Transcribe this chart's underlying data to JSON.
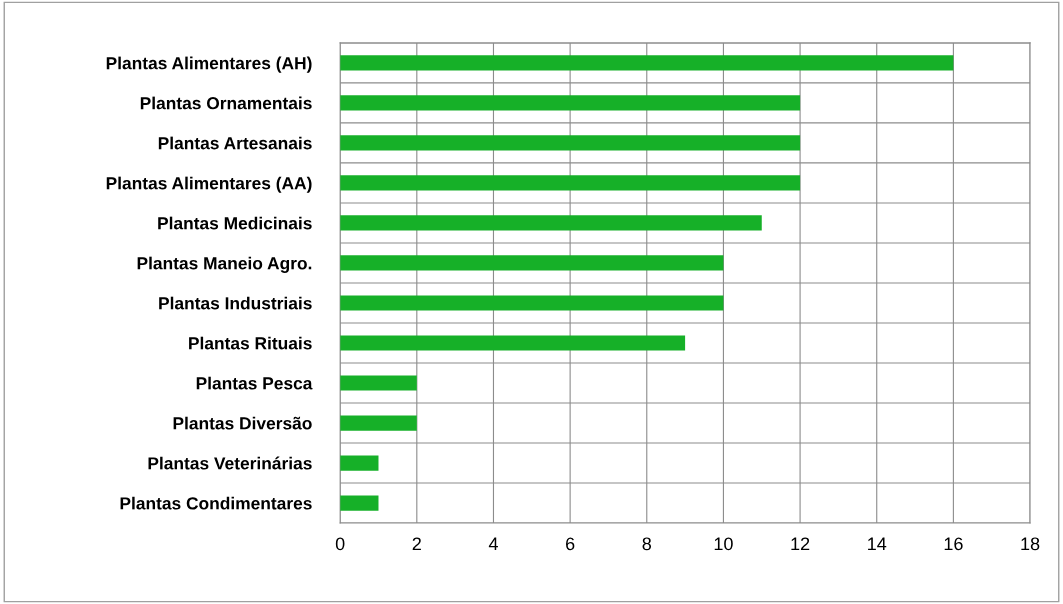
{
  "chart_data": {
    "type": "bar",
    "orientation": "horizontal",
    "categories": [
      "Plantas Alimentares (AH)",
      "Plantas Ornamentais",
      "Plantas Artesanais",
      "Plantas Alimentares (AA)",
      "Plantas Medicinais",
      "Plantas Maneio Agro.",
      "Plantas Industriais",
      "Plantas Rituais",
      "Plantas Pesca",
      "Plantas Diversão",
      "Plantas Veterinárias",
      "Plantas Condimentares"
    ],
    "values": [
      16,
      12,
      12,
      12,
      11,
      10,
      10,
      9,
      2,
      2,
      1,
      1
    ],
    "color": "#16b028",
    "xlim": [
      0,
      18
    ],
    "xticks": [
      0,
      2,
      4,
      6,
      8,
      10,
      12,
      14,
      16,
      18
    ],
    "grid": true,
    "legend": false
  }
}
